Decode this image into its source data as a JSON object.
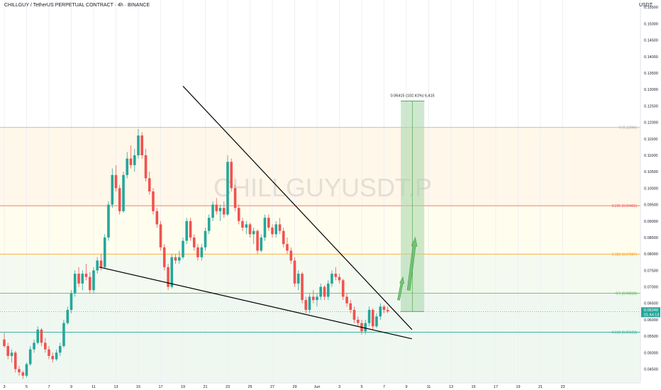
{
  "header": {
    "symbol_line": "CHILLGUY / TetherUS PERPETUAL CONTRACT · 4h · BINANCE",
    "currency": "USDT"
  },
  "watermark": "CHILLGUYUSDT.P",
  "colors": {
    "up": "#26a69a",
    "down": "#ef5350",
    "trendline": "#000000",
    "target_box": "#a5d6a7",
    "arrow": "#66bb6a",
    "price_badge": "#26a69a"
  },
  "chart_data": {
    "type": "candlestick",
    "ylim": [
      0.0408,
      0.1572
    ],
    "y_ticks": [
      "0.15500",
      "0.15000",
      "0.14500",
      "0.14000",
      "0.13500",
      "0.13000",
      "0.12500",
      "0.12000",
      "0.11500",
      "0.11000",
      "0.10500",
      "0.10000",
      "0.09500",
      "0.09000",
      "0.08500",
      "0.08000",
      "0.07500",
      "0.07000",
      "0.06500",
      "0.06000",
      "0.05500",
      "0.05000",
      "0.04500"
    ],
    "y_tick_values": [
      0.155,
      0.15,
      0.145,
      0.14,
      0.135,
      0.13,
      0.125,
      0.12,
      0.115,
      0.11,
      0.105,
      0.1,
      0.095,
      0.09,
      0.085,
      0.08,
      0.075,
      0.07,
      0.065,
      0.06,
      0.055,
      0.05,
      0.045
    ],
    "x_labels": [
      "3",
      "5",
      "7",
      "9",
      "11",
      "13",
      "15",
      "17",
      "19",
      "21",
      "23",
      "25",
      "27",
      "29",
      "Jun",
      "3",
      "5",
      "7",
      "9",
      "11",
      "13",
      "15",
      "17",
      "19",
      "21",
      "23"
    ],
    "x_label_days": [
      0,
      2,
      4,
      6,
      8,
      10,
      12,
      14,
      16,
      18,
      20,
      22,
      24,
      26,
      28,
      30,
      32,
      34,
      36,
      38,
      40,
      42,
      44,
      46,
      48,
      50
    ],
    "candles": [
      {
        "d": 0.0,
        "o": 0.054,
        "h": 0.056,
        "l": 0.0515,
        "c": 0.052
      },
      {
        "d": 0.33,
        "o": 0.052,
        "h": 0.053,
        "l": 0.048,
        "c": 0.049
      },
      {
        "d": 0.67,
        "o": 0.049,
        "h": 0.051,
        "l": 0.047,
        "c": 0.05
      },
      {
        "d": 1.0,
        "o": 0.05,
        "h": 0.0505,
        "l": 0.044,
        "c": 0.045
      },
      {
        "d": 1.33,
        "o": 0.045,
        "h": 0.046,
        "l": 0.043,
        "c": 0.044
      },
      {
        "d": 1.67,
        "o": 0.044,
        "h": 0.0445,
        "l": 0.042,
        "c": 0.043
      },
      {
        "d": 2.0,
        "o": 0.043,
        "h": 0.047,
        "l": 0.0425,
        "c": 0.0465
      },
      {
        "d": 2.33,
        "o": 0.0465,
        "h": 0.052,
        "l": 0.046,
        "c": 0.051
      },
      {
        "d": 2.67,
        "o": 0.051,
        "h": 0.054,
        "l": 0.05,
        "c": 0.053
      },
      {
        "d": 3.0,
        "o": 0.053,
        "h": 0.058,
        "l": 0.0525,
        "c": 0.057
      },
      {
        "d": 3.33,
        "o": 0.057,
        "h": 0.0575,
        "l": 0.052,
        "c": 0.053
      },
      {
        "d": 3.67,
        "o": 0.053,
        "h": 0.0545,
        "l": 0.05,
        "c": 0.051
      },
      {
        "d": 4.0,
        "o": 0.051,
        "h": 0.052,
        "l": 0.048,
        "c": 0.049
      },
      {
        "d": 4.33,
        "o": 0.049,
        "h": 0.05,
        "l": 0.047,
        "c": 0.048
      },
      {
        "d": 4.67,
        "o": 0.048,
        "h": 0.051,
        "l": 0.0475,
        "c": 0.05
      },
      {
        "d": 5.0,
        "o": 0.05,
        "h": 0.053,
        "l": 0.049,
        "c": 0.052
      },
      {
        "d": 5.33,
        "o": 0.052,
        "h": 0.06,
        "l": 0.0515,
        "c": 0.059
      },
      {
        "d": 5.67,
        "o": 0.059,
        "h": 0.064,
        "l": 0.0585,
        "c": 0.063
      },
      {
        "d": 6.0,
        "o": 0.063,
        "h": 0.069,
        "l": 0.062,
        "c": 0.068
      },
      {
        "d": 6.33,
        "o": 0.068,
        "h": 0.075,
        "l": 0.067,
        "c": 0.074
      },
      {
        "d": 6.67,
        "o": 0.074,
        "h": 0.076,
        "l": 0.07,
        "c": 0.071
      },
      {
        "d": 7.0,
        "o": 0.071,
        "h": 0.075,
        "l": 0.069,
        "c": 0.074
      },
      {
        "d": 7.33,
        "o": 0.074,
        "h": 0.077,
        "l": 0.072,
        "c": 0.073
      },
      {
        "d": 7.67,
        "o": 0.073,
        "h": 0.0745,
        "l": 0.068,
        "c": 0.069
      },
      {
        "d": 8.0,
        "o": 0.069,
        "h": 0.076,
        "l": 0.068,
        "c": 0.075
      },
      {
        "d": 8.33,
        "o": 0.075,
        "h": 0.079,
        "l": 0.074,
        "c": 0.078
      },
      {
        "d": 8.67,
        "o": 0.078,
        "h": 0.08,
        "l": 0.075,
        "c": 0.076
      },
      {
        "d": 9.0,
        "o": 0.076,
        "h": 0.086,
        "l": 0.0755,
        "c": 0.085
      },
      {
        "d": 9.33,
        "o": 0.085,
        "h": 0.096,
        "l": 0.084,
        "c": 0.095
      },
      {
        "d": 9.67,
        "o": 0.095,
        "h": 0.106,
        "l": 0.094,
        "c": 0.104
      },
      {
        "d": 10.0,
        "o": 0.104,
        "h": 0.107,
        "l": 0.099,
        "c": 0.1
      },
      {
        "d": 10.33,
        "o": 0.1,
        "h": 0.101,
        "l": 0.092,
        "c": 0.093
      },
      {
        "d": 10.67,
        "o": 0.093,
        "h": 0.105,
        "l": 0.0925,
        "c": 0.104
      },
      {
        "d": 11.0,
        "o": 0.104,
        "h": 0.111,
        "l": 0.103,
        "c": 0.109
      },
      {
        "d": 11.33,
        "o": 0.109,
        "h": 0.113,
        "l": 0.106,
        "c": 0.107
      },
      {
        "d": 11.67,
        "o": 0.107,
        "h": 0.112,
        "l": 0.105,
        "c": 0.11
      },
      {
        "d": 12.0,
        "o": 0.11,
        "h": 0.118,
        "l": 0.109,
        "c": 0.116
      },
      {
        "d": 12.33,
        "o": 0.116,
        "h": 0.117,
        "l": 0.109,
        "c": 0.11
      },
      {
        "d": 12.67,
        "o": 0.11,
        "h": 0.112,
        "l": 0.102,
        "c": 0.103
      },
      {
        "d": 13.0,
        "o": 0.103,
        "h": 0.105,
        "l": 0.098,
        "c": 0.099
      },
      {
        "d": 13.33,
        "o": 0.099,
        "h": 0.1,
        "l": 0.092,
        "c": 0.093
      },
      {
        "d": 13.67,
        "o": 0.093,
        "h": 0.094,
        "l": 0.088,
        "c": 0.089
      },
      {
        "d": 14.0,
        "o": 0.089,
        "h": 0.09,
        "l": 0.081,
        "c": 0.082
      },
      {
        "d": 14.33,
        "o": 0.082,
        "h": 0.083,
        "l": 0.075,
        "c": 0.076
      },
      {
        "d": 14.67,
        "o": 0.076,
        "h": 0.077,
        "l": 0.069,
        "c": 0.07
      },
      {
        "d": 15.0,
        "o": 0.07,
        "h": 0.08,
        "l": 0.0695,
        "c": 0.079
      },
      {
        "d": 15.33,
        "o": 0.079,
        "h": 0.08,
        "l": 0.077,
        "c": 0.078
      },
      {
        "d": 15.67,
        "o": 0.078,
        "h": 0.081,
        "l": 0.077,
        "c": 0.079
      },
      {
        "d": 16.0,
        "o": 0.079,
        "h": 0.085,
        "l": 0.0785,
        "c": 0.084
      },
      {
        "d": 16.33,
        "o": 0.084,
        "h": 0.091,
        "l": 0.083,
        "c": 0.09
      },
      {
        "d": 16.67,
        "o": 0.09,
        "h": 0.091,
        "l": 0.084,
        "c": 0.085
      },
      {
        "d": 17.0,
        "o": 0.085,
        "h": 0.086,
        "l": 0.081,
        "c": 0.082
      },
      {
        "d": 17.33,
        "o": 0.082,
        "h": 0.083,
        "l": 0.078,
        "c": 0.079
      },
      {
        "d": 17.67,
        "o": 0.079,
        "h": 0.083,
        "l": 0.078,
        "c": 0.082
      },
      {
        "d": 18.0,
        "o": 0.082,
        "h": 0.088,
        "l": 0.081,
        "c": 0.087
      },
      {
        "d": 18.33,
        "o": 0.087,
        "h": 0.092,
        "l": 0.086,
        "c": 0.091
      },
      {
        "d": 18.67,
        "o": 0.091,
        "h": 0.096,
        "l": 0.09,
        "c": 0.095
      },
      {
        "d": 19.0,
        "o": 0.095,
        "h": 0.097,
        "l": 0.092,
        "c": 0.093
      },
      {
        "d": 19.33,
        "o": 0.093,
        "h": 0.095,
        "l": 0.09,
        "c": 0.094
      },
      {
        "d": 19.67,
        "o": 0.094,
        "h": 0.096,
        "l": 0.091,
        "c": 0.092
      },
      {
        "d": 20.0,
        "o": 0.092,
        "h": 0.11,
        "l": 0.0915,
        "c": 0.108
      },
      {
        "d": 20.33,
        "o": 0.108,
        "h": 0.109,
        "l": 0.099,
        "c": 0.1
      },
      {
        "d": 20.67,
        "o": 0.1,
        "h": 0.101,
        "l": 0.093,
        "c": 0.094
      },
      {
        "d": 21.0,
        "o": 0.094,
        "h": 0.095,
        "l": 0.089,
        "c": 0.09
      },
      {
        "d": 21.33,
        "o": 0.09,
        "h": 0.091,
        "l": 0.087,
        "c": 0.088
      },
      {
        "d": 21.67,
        "o": 0.088,
        "h": 0.09,
        "l": 0.086,
        "c": 0.089
      },
      {
        "d": 22.0,
        "o": 0.089,
        "h": 0.0895,
        "l": 0.085,
        "c": 0.086
      },
      {
        "d": 22.33,
        "o": 0.086,
        "h": 0.088,
        "l": 0.083,
        "c": 0.087
      },
      {
        "d": 22.67,
        "o": 0.087,
        "h": 0.0875,
        "l": 0.08,
        "c": 0.081
      },
      {
        "d": 23.0,
        "o": 0.081,
        "h": 0.086,
        "l": 0.0805,
        "c": 0.085
      },
      {
        "d": 23.33,
        "o": 0.085,
        "h": 0.092,
        "l": 0.084,
        "c": 0.091
      },
      {
        "d": 23.67,
        "o": 0.091,
        "h": 0.092,
        "l": 0.087,
        "c": 0.088
      },
      {
        "d": 24.0,
        "o": 0.088,
        "h": 0.089,
        "l": 0.085,
        "c": 0.086
      },
      {
        "d": 24.33,
        "o": 0.086,
        "h": 0.09,
        "l": 0.085,
        "c": 0.089
      },
      {
        "d": 24.67,
        "o": 0.089,
        "h": 0.091,
        "l": 0.086,
        "c": 0.087
      },
      {
        "d": 25.0,
        "o": 0.087,
        "h": 0.088,
        "l": 0.082,
        "c": 0.083
      },
      {
        "d": 25.33,
        "o": 0.083,
        "h": 0.085,
        "l": 0.08,
        "c": 0.081
      },
      {
        "d": 25.67,
        "o": 0.081,
        "h": 0.082,
        "l": 0.077,
        "c": 0.078
      },
      {
        "d": 26.0,
        "o": 0.078,
        "h": 0.079,
        "l": 0.07,
        "c": 0.071
      },
      {
        "d": 26.33,
        "o": 0.071,
        "h": 0.075,
        "l": 0.069,
        "c": 0.074
      },
      {
        "d": 26.67,
        "o": 0.074,
        "h": 0.0745,
        "l": 0.065,
        "c": 0.066
      },
      {
        "d": 27.0,
        "o": 0.066,
        "h": 0.067,
        "l": 0.062,
        "c": 0.063
      },
      {
        "d": 27.33,
        "o": 0.063,
        "h": 0.068,
        "l": 0.062,
        "c": 0.067
      },
      {
        "d": 27.67,
        "o": 0.067,
        "h": 0.069,
        "l": 0.065,
        "c": 0.066
      },
      {
        "d": 28.0,
        "o": 0.066,
        "h": 0.068,
        "l": 0.064,
        "c": 0.067
      },
      {
        "d": 28.33,
        "o": 0.067,
        "h": 0.071,
        "l": 0.066,
        "c": 0.07
      },
      {
        "d": 28.67,
        "o": 0.07,
        "h": 0.0705,
        "l": 0.066,
        "c": 0.067
      },
      {
        "d": 29.0,
        "o": 0.067,
        "h": 0.072,
        "l": 0.066,
        "c": 0.071
      },
      {
        "d": 29.33,
        "o": 0.071,
        "h": 0.075,
        "l": 0.07,
        "c": 0.074
      },
      {
        "d": 29.67,
        "o": 0.074,
        "h": 0.076,
        "l": 0.072,
        "c": 0.073
      },
      {
        "d": 30.0,
        "o": 0.073,
        "h": 0.074,
        "l": 0.071,
        "c": 0.072
      },
      {
        "d": 30.33,
        "o": 0.072,
        "h": 0.0725,
        "l": 0.066,
        "c": 0.067
      },
      {
        "d": 30.67,
        "o": 0.067,
        "h": 0.068,
        "l": 0.064,
        "c": 0.065
      },
      {
        "d": 31.0,
        "o": 0.065,
        "h": 0.066,
        "l": 0.062,
        "c": 0.063
      },
      {
        "d": 31.33,
        "o": 0.063,
        "h": 0.064,
        "l": 0.059,
        "c": 0.06
      },
      {
        "d": 31.67,
        "o": 0.06,
        "h": 0.061,
        "l": 0.058,
        "c": 0.059
      },
      {
        "d": 32.0,
        "o": 0.059,
        "h": 0.06,
        "l": 0.0555,
        "c": 0.0565
      },
      {
        "d": 32.33,
        "o": 0.0565,
        "h": 0.06,
        "l": 0.0555,
        "c": 0.059
      },
      {
        "d": 32.67,
        "o": 0.059,
        "h": 0.064,
        "l": 0.058,
        "c": 0.063
      },
      {
        "d": 33.0,
        "o": 0.063,
        "h": 0.0635,
        "l": 0.057,
        "c": 0.058
      },
      {
        "d": 33.33,
        "o": 0.058,
        "h": 0.062,
        "l": 0.0575,
        "c": 0.061
      },
      {
        "d": 33.67,
        "o": 0.061,
        "h": 0.065,
        "l": 0.06,
        "c": 0.064
      },
      {
        "d": 34.0,
        "o": 0.064,
        "h": 0.0645,
        "l": 0.062,
        "c": 0.063
      },
      {
        "d": 34.33,
        "o": 0.063,
        "h": 0.064,
        "l": 0.062,
        "c": 0.0625
      }
    ],
    "trendlines": [
      {
        "name": "upper",
        "from": {
          "d": 16.0,
          "price": 0.131
        },
        "to": {
          "d": 36.5,
          "price": 0.057
        }
      },
      {
        "name": "lower",
        "from": {
          "d": 8.5,
          "price": 0.076
        },
        "to": {
          "d": 36.5,
          "price": 0.0542
        }
      }
    ],
    "fibonacci": [
      {
        "label": "0 (0.11846)",
        "price": 0.11846,
        "color": "#b0a6a6"
      },
      {
        "label": "0.236 (0.09466)",
        "price": 0.09466,
        "color": "#ef5350"
      },
      {
        "label": "0.382 (0.07997)",
        "price": 0.07997,
        "color": "#ff9800"
      },
      {
        "label": "0.5 (0.06810)",
        "price": 0.0681,
        "color": "#4caf50"
      },
      {
        "label": "0.618 (0.05623)",
        "price": 0.05623,
        "color": "#26a69a"
      }
    ],
    "current_price_line": 0.0625,
    "target": {
      "label": "0.06415 (102.41%) 6,415",
      "from_d": 35.5,
      "to_d": 37.6,
      "price_low": 0.0625,
      "price_high": 0.1265
    },
    "arrows": [
      {
        "from": {
          "d": 35.3,
          "price": 0.066
        },
        "to": {
          "d": 35.7,
          "price": 0.073
        }
      },
      {
        "from": {
          "d": 36.2,
          "price": 0.069
        },
        "to": {
          "d": 36.8,
          "price": 0.085
        }
      }
    ],
    "price_badge": {
      "value": "0.06249",
      "time": "01:44:13",
      "price": 0.0625
    }
  }
}
